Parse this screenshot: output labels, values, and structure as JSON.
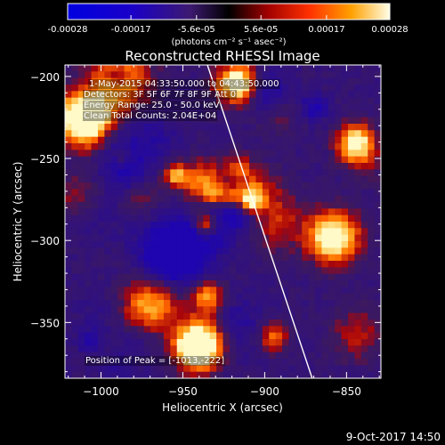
{
  "colorbar": {
    "min": -0.00028,
    "max": 0.00028,
    "tick_values": [
      -0.00028,
      -0.00017,
      -5.6e-05,
      5.6e-05,
      0.00017,
      0.00028
    ],
    "tick_labels": [
      "-0.00028",
      "-0.00017",
      "-5.6e-05",
      "5.6e-05",
      "0.00017",
      "0.00028"
    ],
    "unit_label": "(photons cm⁻² s⁻¹ asec⁻²)"
  },
  "chart_data": {
    "type": "heatmap",
    "title": "Reconstructed RHESSI Image",
    "xlabel": "Heliocentric X (arcsec)",
    "ylabel": "Heliocentric Y (arcsec)",
    "xlim": [
      -1022,
      -829
    ],
    "ylim": [
      -384,
      -193
    ],
    "x_ticks": [
      -1000,
      -950,
      -900,
      -850
    ],
    "x_tick_labels": [
      "−1000",
      "−950",
      "−900",
      "−850"
    ],
    "y_ticks": [
      -200,
      -250,
      -300,
      -350
    ],
    "y_tick_labels": [
      "−200",
      "−250",
      "−300",
      "−350"
    ],
    "limb_line": [
      [
        -935,
        -193
      ],
      [
        -871,
        -384
      ]
    ],
    "grid": false,
    "annotations": [
      "1-May-2015 04:33:50.000 to 04:43:50.000",
      "Detectors: 3F 5F 6F 7F 8F 9F Att 0",
      "Energy Range: 25.0 - 50.0 keV",
      "Clean    Total Counts: 2.04E+04"
    ],
    "peak_label": "Position of Peak = [-1013,-222]"
  },
  "footer": {
    "timestamp": "9-Oct-2017 14:50"
  },
  "colors": {
    "background": "#000000",
    "foreground": "#ffffff"
  }
}
